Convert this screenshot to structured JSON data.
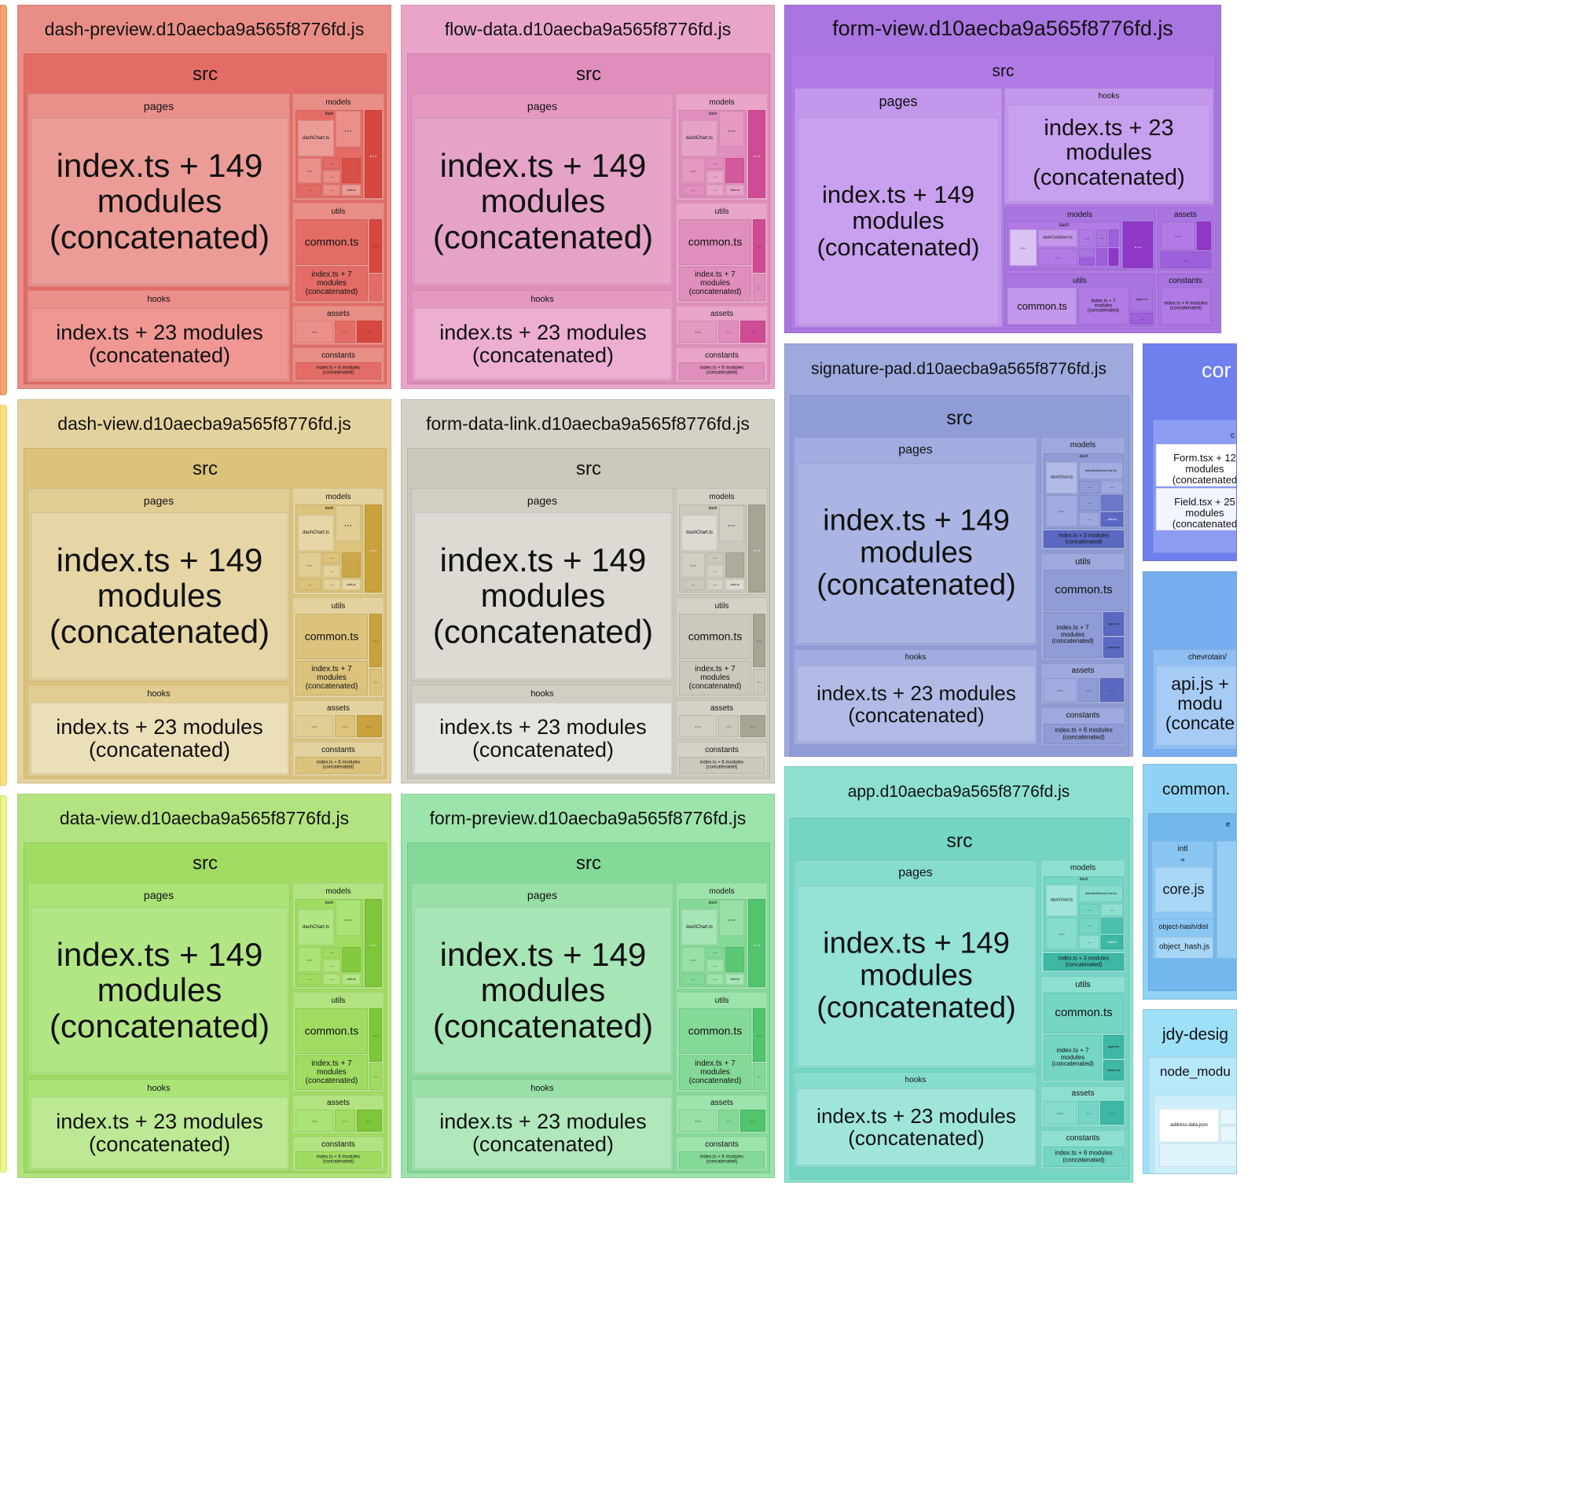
{
  "colors": {
    "red": [
      "#e98e86",
      "#e36d66",
      "#eb8f8a",
      "#ec9c97",
      "#f09794",
      "#d6483f"
    ],
    "pink": [
      "#e9a5c9",
      "#e08ebc",
      "#e598c2",
      "#e6a3c8",
      "#ecaed1",
      "#cf4c95"
    ],
    "purple": [
      "#a975e1",
      "#b17ae5",
      "#c397ec",
      "#c8a0ef",
      "#c7a0ef",
      "#8f38c6"
    ],
    "yellow": [
      "#e4d29e",
      "#dbc37c",
      "#e1cd93",
      "#e6d6a6",
      "#ebdfb9",
      "#c7a23e"
    ],
    "gray": [
      "#d4d1c6",
      "#cbc8bc",
      "#d1cec4",
      "#dcdad3",
      "#e6e4df",
      "#a7a493"
    ],
    "periwinkle": [
      "#9ea9dd",
      "#8f9cd6",
      "#a1ace0",
      "#aab5e4",
      "#b2bbe6",
      "#5b69c2"
    ],
    "lime": [
      "#b2e380",
      "#a0dc62",
      "#aae376",
      "#b2e685",
      "#bde994",
      "#7ec63a"
    ],
    "mint": [
      "#9de3ac",
      "#85d998",
      "#98e0a8",
      "#a6e5b5",
      "#b0e8bc",
      "#52c46d"
    ],
    "teal": [
      "#8de0d0",
      "#75d6c5",
      "#86ddcf",
      "#95e2d6",
      "#9fe5da",
      "#3eb8a5"
    ],
    "blue": "#6f80ee",
    "sky": "#77aef0",
    "light": "#8fd2f5",
    "leftorange": "#f6a36e",
    "leftyellow": "#fbe07a",
    "leftlime": "#ecf68d"
  },
  "chunks": [
    {
      "file": "dash-preview.d10aecba9a565f8776fd.js",
      "theme": "red",
      "src": "src",
      "pages_label": "pages",
      "pages_module": "index.ts + 149 modules (concatenated)",
      "hooks_label": "hooks",
      "hooks_module": "index.ts + 23 modules (concatenated)",
      "models_label": "models",
      "dash_label": "dash",
      "dashchart": "dashChart.ts",
      "utilsts": "utils.ts",
      "ellipsis": "...",
      "utils_label": "utils",
      "common": "common.ts",
      "utils_index": "index.ts + 7 modules (concatenated)",
      "assets_label": "assets",
      "constants_label": "constants",
      "constants_index": "index.ts + 6 modules (concatenated)"
    },
    {
      "file": "flow-data.d10aecba9a565f8776fd.js",
      "theme": "pink",
      "src": "src",
      "pages_label": "pages",
      "pages_module": "index.ts + 149 modules (concatenated)",
      "hooks_label": "hooks",
      "hooks_module": "index.ts + 23 modules (concatenated)",
      "models_label": "models",
      "dash_label": "dash",
      "dashchart": "dashChart.ts",
      "utilsts": "utils.ts",
      "ellipsis": "...",
      "utils_label": "utils",
      "common": "common.ts",
      "utils_index": "index.ts + 7 modules (concatenated)",
      "assets_label": "assets",
      "constants_label": "constants",
      "constants_index": "index.ts + 6 modules (concatenated)"
    },
    {
      "file": "dash-view.d10aecba9a565f8776fd.js",
      "theme": "yellow",
      "src": "src",
      "pages_label": "pages",
      "pages_module": "index.ts + 149 modules (concatenated)",
      "hooks_label": "hooks",
      "hooks_module": "index.ts + 23 modules (concatenated)",
      "models_label": "models",
      "dash_label": "dash",
      "dashchart": "dashChart.ts",
      "utilsts": "utils.ts",
      "ellipsis": "...",
      "utils_label": "utils",
      "common": "common.ts",
      "utils_index": "index.ts + 7 modules (concatenated)",
      "assets_label": "assets",
      "constants_label": "constants",
      "constants_index": "index.ts + 6 modules (concatenated)"
    },
    {
      "file": "form-data-link.d10aecba9a565f8776fd.js",
      "theme": "gray",
      "src": "src",
      "pages_label": "pages",
      "pages_module": "index.ts + 149 modules (concatenated)",
      "hooks_label": "hooks",
      "hooks_module": "index.ts + 23 modules (concatenated)",
      "models_label": "models",
      "dash_label": "dash",
      "dashchart": "dashChart.ts",
      "utilsts": "utils.ts",
      "ellipsis": "...",
      "utils_label": "utils",
      "common": "common.ts",
      "utils_index": "index.ts + 7 modules (concatenated)",
      "assets_label": "assets",
      "constants_label": "constants",
      "constants_index": "index.ts + 6 modules (concatenated)"
    },
    {
      "file": "data-view.d10aecba9a565f8776fd.js",
      "theme": "lime",
      "src": "src",
      "pages_label": "pages",
      "pages_module": "index.ts + 149 modules (concatenated)",
      "hooks_label": "hooks",
      "hooks_module": "index.ts + 23 modules (concatenated)",
      "models_label": "models",
      "dash_label": "dash",
      "dashchart": "dashChart.ts",
      "utilsts": "utils.ts",
      "ellipsis": "...",
      "utils_label": "utils",
      "common": "common.ts",
      "utils_index": "index.ts + 7 modules (concatenated)",
      "assets_label": "assets",
      "constants_label": "constants",
      "constants_index": "index.ts + 6 modules (concatenated)"
    },
    {
      "file": "form-preview.d10aecba9a565f8776fd.js",
      "theme": "mint",
      "src": "src",
      "pages_label": "pages",
      "pages_module": "index.ts + 149 modules (concatenated)",
      "hooks_label": "hooks",
      "hooks_module": "index.ts + 23 modules (concatenated)",
      "models_label": "models",
      "dash_label": "dash",
      "dashchart": "dashChart.ts",
      "utilsts": "utils.ts",
      "ellipsis": "...",
      "utils_label": "utils",
      "common": "common.ts",
      "utils_index": "index.ts + 7 modules (concatenated)",
      "assets_label": "assets",
      "constants_label": "constants",
      "constants_index": "index.ts + 6 modules (concatenated)"
    }
  ],
  "form_view": {
    "file": "form-view.d10aecba9a565f8776fd.js",
    "src": "src",
    "pages_label": "pages",
    "pages_module": "index.ts + 149 modules (concatenated)",
    "hooks_label": "hooks",
    "hooks_module": "index.ts + 23 modules (concatenated)",
    "models_label": "models",
    "dash_label": "dash",
    "dashcontainer": "dashContainer.ts",
    "ellipsis": "...",
    "assets_label": "assets",
    "utils_label": "utils",
    "common": "common.ts",
    "utils_index": "index.ts + 7 modules (concatenated)",
    "agent": "agent.ts",
    "constants_label": "constants",
    "constants_index": "index.ts + 6 modules (concatenated)"
  },
  "wide_chunks": [
    {
      "file": "signature-pad.d10aecba9a565f8776fd.js",
      "theme": "periwinkle",
      "src": "src",
      "pages_label": "pages",
      "pages_module": "index.ts + 149 modules (concatenated)",
      "hooks_label": "hooks",
      "hooks_module": "index.ts + 23 modules (concatenated)",
      "models_label": "models",
      "dash_label": "dash",
      "dashchart": "dashChart.ts",
      "dashmulti": "dashMultiAxesChart.ts",
      "utilsts": "utils.ts",
      "ellipsis": "...",
      "models_index": "index.ts + 3 modules (concatenated)",
      "utils_label": "utils",
      "common": "common.ts",
      "utils_index": "index.ts + 7 modules (concatenated)",
      "agent": "agent.ts",
      "lodash": "lodash.ts",
      "assets_label": "assets",
      "constants_label": "constants",
      "constants_index": "index.ts + 6 modules (concatenated)"
    },
    {
      "file": "app.d10aecba9a565f8776fd.js",
      "theme": "teal",
      "src": "src",
      "pages_label": "pages",
      "pages_module": "index.ts + 149 modules (concatenated)",
      "hooks_label": "hooks",
      "hooks_module": "index.ts + 23 modules (concatenated)",
      "models_label": "models",
      "dash_label": "dash",
      "dashchart": "dashChart.ts",
      "dashmulti": "dashMultiAxesChart.ts",
      "utilsts": "utils.ts",
      "ellipsis": "...",
      "models_index": "index.ts + 3 modules (concatenated)",
      "utils_label": "utils",
      "common": "common.ts",
      "utils_index": "index.ts + 7 modules (concatenated)",
      "agent": "agent.ts",
      "lodash": "lodash.ts",
      "assets_label": "assets",
      "constants_label": "constants",
      "constants_index": "index.ts + 6 modules (concatenated)"
    }
  ],
  "right_col": {
    "com_title": "cor",
    "com_small": "c",
    "form_tsx": "Form.tsx + 12 modules (concatenated",
    "field_tsx": "Field.tsx + 25 modules (concatenated",
    "chevrotain": "chevrotain/",
    "api_js": "api.js + modu (concate",
    "common_title": "common.",
    "intl": "intl",
    "e_small": "e",
    "lib": "lib",
    "core_js": "core.js",
    "object_hash_dist": "object-hash/dist",
    "object_hash_js": "object_hash.js",
    "jdy_title": "jdy-desig",
    "node_modules": "node_modu",
    "address_json": "address-data.json"
  }
}
